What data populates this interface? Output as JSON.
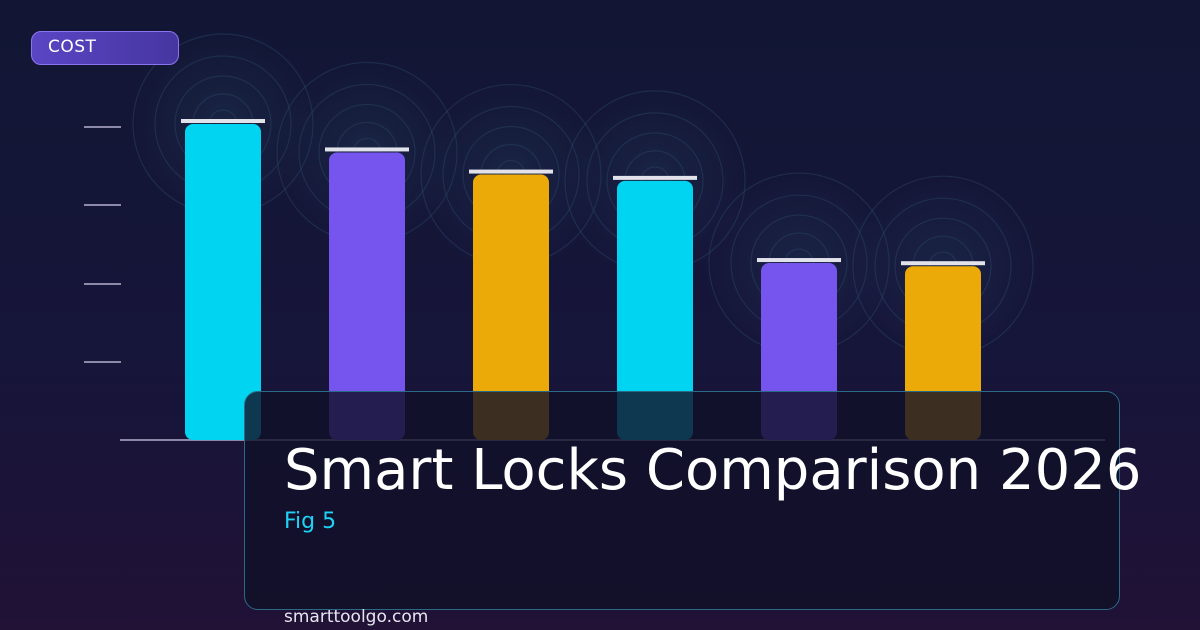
{
  "badge": {
    "label": "COST"
  },
  "title": "Smart Locks Comparison 2026",
  "subtitle": "Fig 5",
  "footer": {
    "site": "smarttoolgo.com"
  },
  "colors": {
    "cyan": "#00d4f0",
    "violet": "#7655ee",
    "amber": "#ebaa07",
    "cap": "#e2e2ea",
    "axis": "#8c8aa8",
    "title": "#ffffff",
    "subtitle": "#1ed2f5"
  },
  "chart_data": {
    "type": "bar",
    "title": "",
    "xlabel": "",
    "ylabel": "COST",
    "ylim": [
      0,
      100
    ],
    "grid": false,
    "series": [
      {
        "values": [
          100,
          91,
          84,
          82,
          56,
          55
        ],
        "colors": [
          "cyan",
          "violet",
          "amber",
          "cyan",
          "violet",
          "amber"
        ]
      }
    ]
  }
}
